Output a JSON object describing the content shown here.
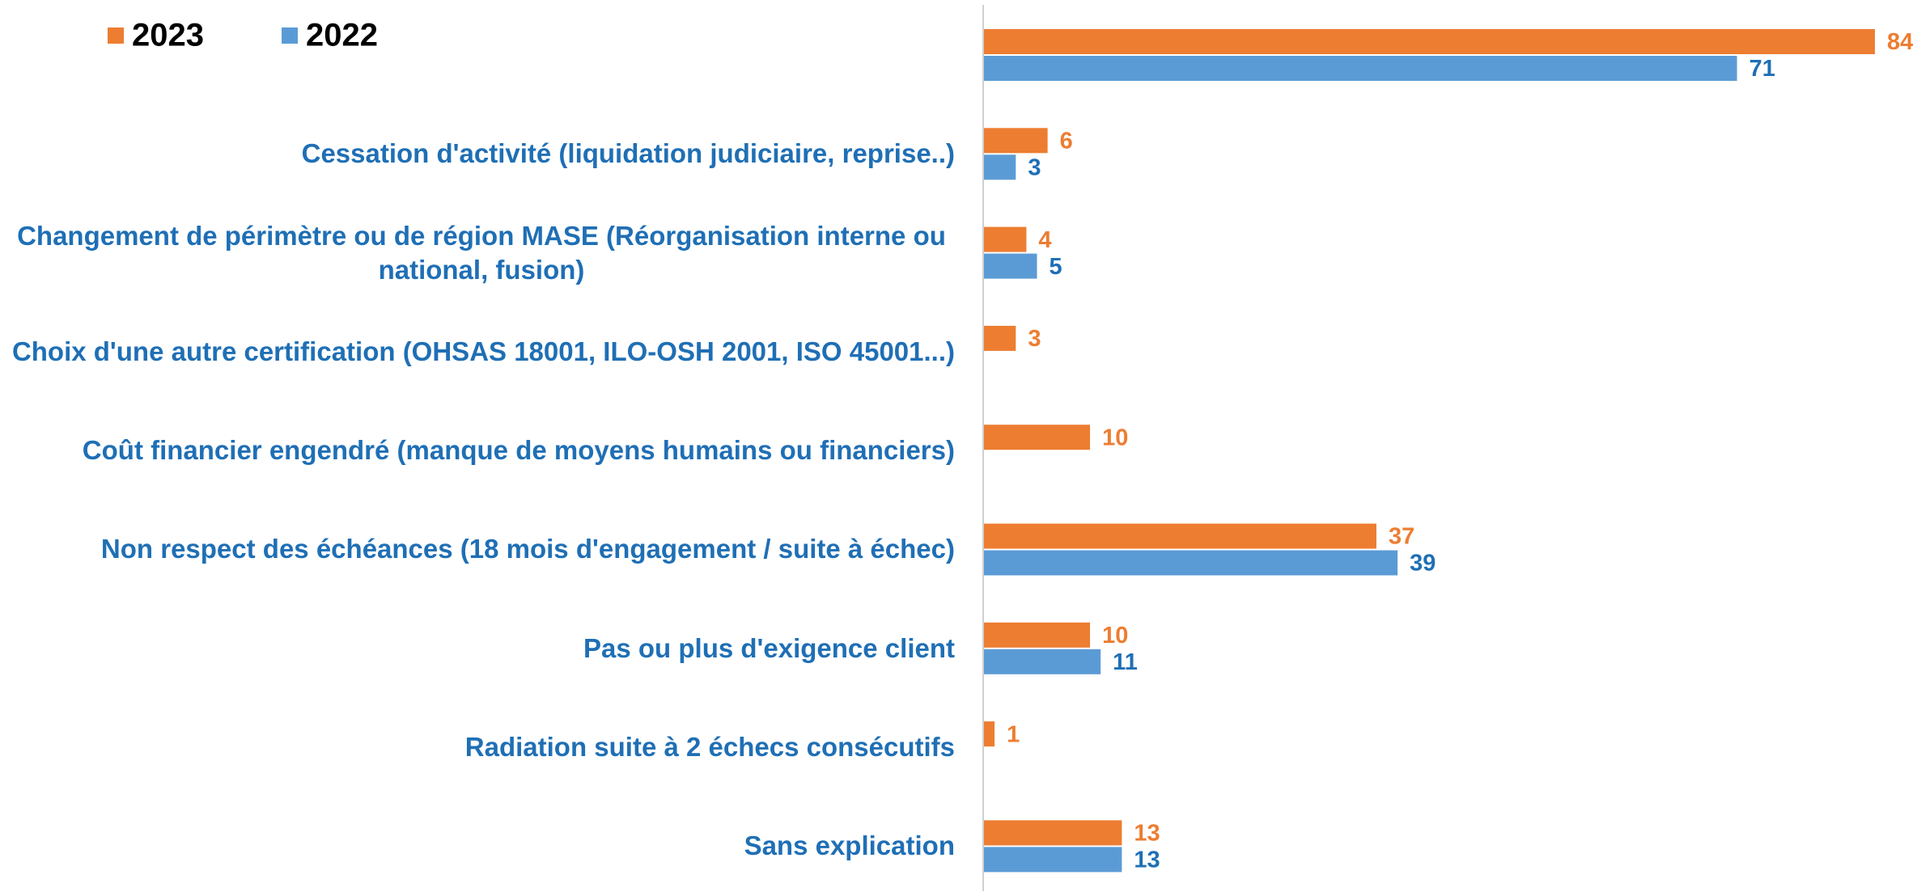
{
  "chart_data": {
    "type": "barh",
    "categories": [
      null,
      "Cessation d'activité (liquidation judiciaire, reprise..)",
      "Changement de périmètre ou de région MASE (Réorganisation interne ou national, fusion)",
      "Choix d'une autre certification (OHSAS 18001, ILO-OSH 2001, ISO 45001...)",
      "Coût financier engendré (manque de moyens humains ou financiers)",
      "Non respect des échéances (18 mois d'engagement / suite à échec)",
      "Pas ou plus d'exigence client",
      "Radiation suite à 2 échecs consécutifs",
      "Sans explication"
    ],
    "series": [
      {
        "name": "2023",
        "color": "#ed7d31",
        "label_color": "#ed7d31",
        "values": [
          84,
          6,
          4,
          3,
          10,
          37,
          10,
          1,
          13
        ]
      },
      {
        "name": "2022",
        "color": "#5b9bd5",
        "label_color": "#1f6fb5",
        "values": [
          71,
          3,
          5,
          null,
          null,
          39,
          11,
          null,
          13
        ]
      }
    ],
    "legend": "top-left",
    "category_color": "#1f6fb5"
  }
}
